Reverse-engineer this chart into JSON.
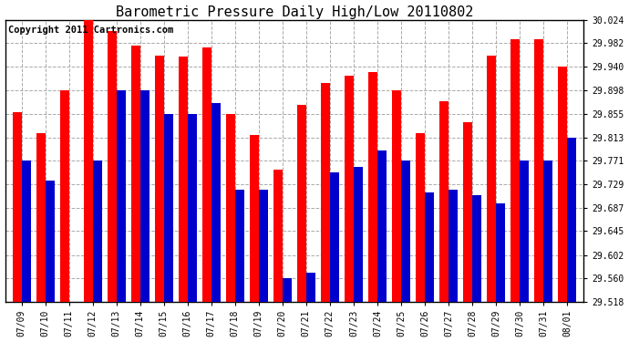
{
  "title": "Barometric Pressure Daily High/Low 20110802",
  "copyright": "Copyright 2011 Cartronics.com",
  "dates": [
    "07/09",
    "07/10",
    "07/11",
    "07/12",
    "07/13",
    "07/14",
    "07/15",
    "07/16",
    "07/17",
    "07/18",
    "07/19",
    "07/20",
    "07/21",
    "07/22",
    "07/23",
    "07/24",
    "07/25",
    "07/26",
    "07/27",
    "07/28",
    "07/29",
    "07/30",
    "07/31",
    "08/01"
  ],
  "highs": [
    29.858,
    29.82,
    29.898,
    30.024,
    30.004,
    29.978,
    29.96,
    29.958,
    29.975,
    29.855,
    29.818,
    29.756,
    29.872,
    29.91,
    29.924,
    29.93,
    29.898,
    29.82,
    29.878,
    29.84,
    29.96,
    29.99,
    29.99,
    29.94
  ],
  "lows": [
    29.771,
    29.735,
    29.518,
    29.771,
    29.898,
    29.898,
    29.855,
    29.855,
    29.875,
    29.72,
    29.72,
    29.56,
    29.57,
    29.75,
    29.76,
    29.79,
    29.771,
    29.715,
    29.72,
    29.71,
    29.695,
    29.771,
    29.771,
    29.813
  ],
  "ymin": 29.518,
  "ymax": 30.024,
  "yticks": [
    29.518,
    29.56,
    29.602,
    29.645,
    29.687,
    29.729,
    29.771,
    29.813,
    29.855,
    29.898,
    29.94,
    29.982,
    30.024
  ],
  "high_color": "#ff0000",
  "low_color": "#0000cc",
  "bg_color": "#ffffff",
  "grid_color": "#aaaaaa",
  "title_fontsize": 11,
  "copyright_fontsize": 7.5
}
